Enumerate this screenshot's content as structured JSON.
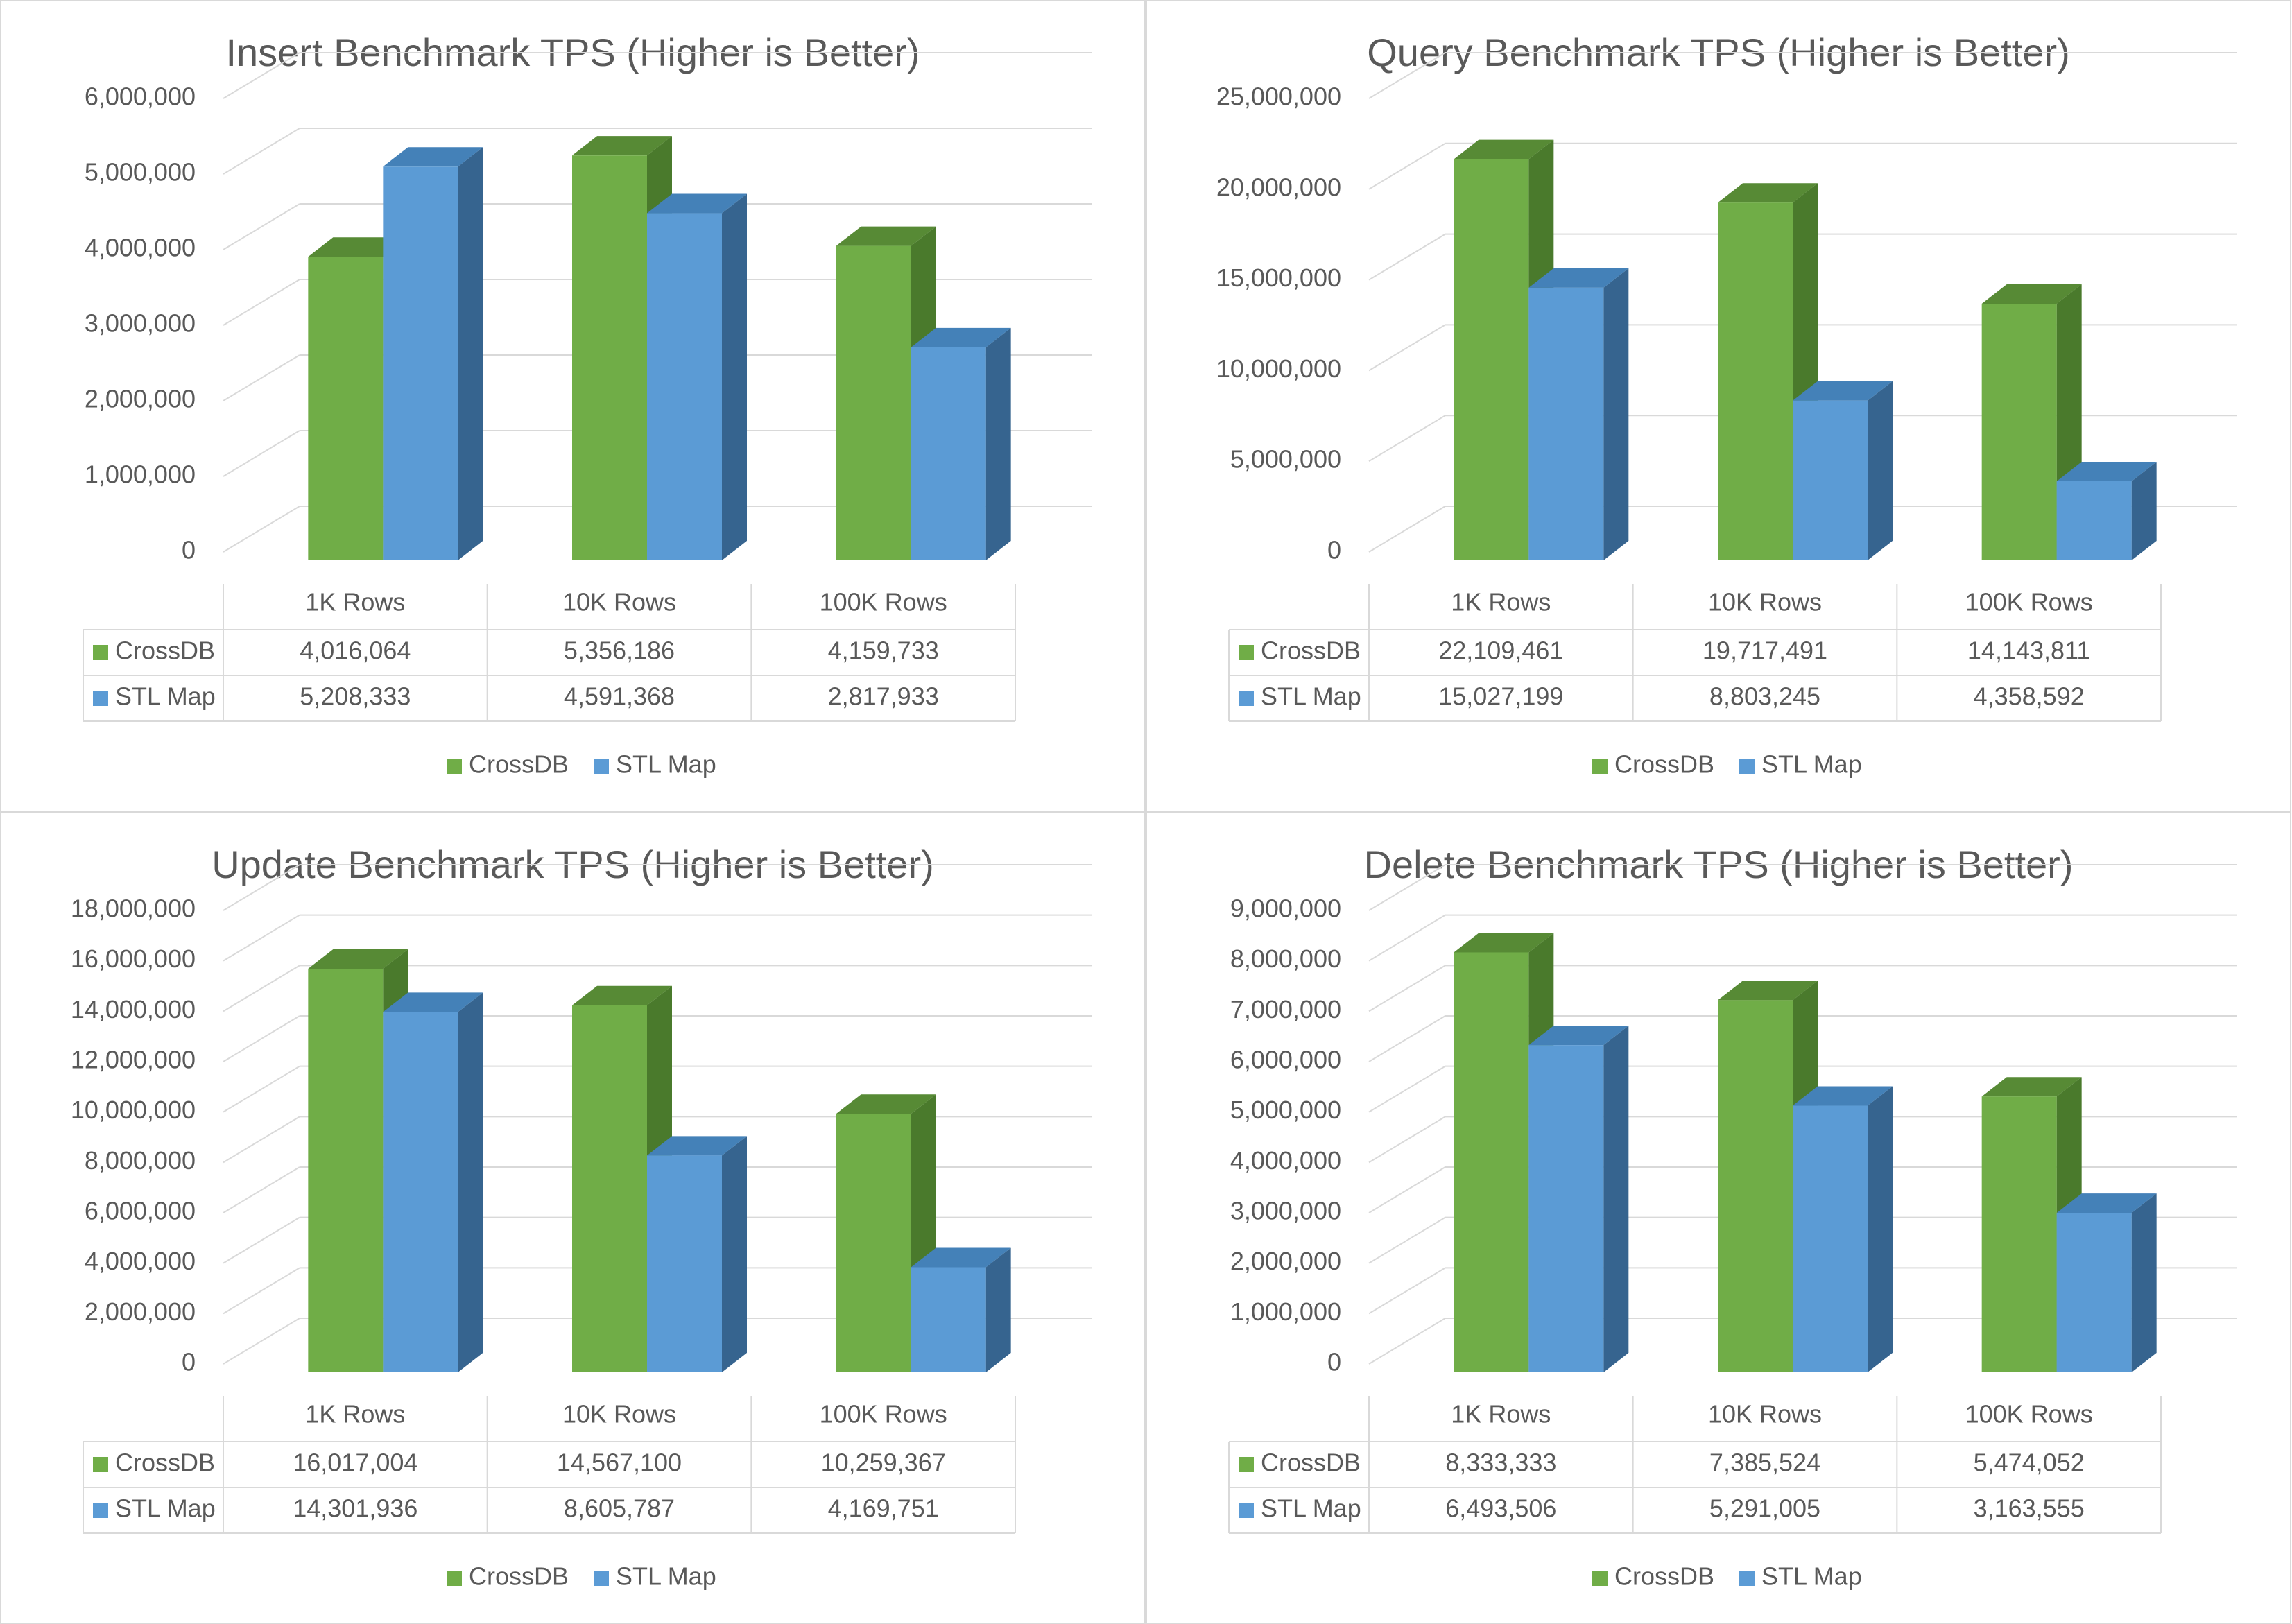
{
  "categories": [
    "1K Rows",
    "10K Rows",
    "100K Rows"
  ],
  "series_names": [
    "CrossDB",
    "STL Map"
  ],
  "colors": {
    "crossdb": "#70ad47",
    "crossdb_side": "#4a7a2c",
    "crossdb_top": "#578a35",
    "stl": "#5b9bd5",
    "stl_side": "#36648f",
    "stl_top": "#4481b8",
    "grid": "#d9d9d9",
    "text": "#595959",
    "title": "#595959"
  },
  "chart_data": [
    {
      "type": "bar",
      "title": "Insert Benchmark TPS (Higher is Better)",
      "categories": [
        "1K Rows",
        "10K Rows",
        "100K Rows"
      ],
      "series": [
        {
          "name": "CrossDB",
          "values": [
            4016064,
            5356186,
            4159733
          ],
          "labels": [
            "4,016,064",
            "5,356,186",
            "4,159,733"
          ]
        },
        {
          "name": "STL Map",
          "values": [
            5208333,
            4591368,
            2817933
          ],
          "labels": [
            "5,208,333",
            "4,591,368",
            "2,817,933"
          ]
        }
      ],
      "ylim": [
        0,
        6000000
      ],
      "yticks": [
        "0",
        "1,000,000",
        "2,000,000",
        "3,000,000",
        "4,000,000",
        "5,000,000",
        "6,000,000"
      ],
      "legend": "bottom",
      "grid": true
    },
    {
      "type": "bar",
      "title": "Query Benchmark TPS (Higher is Better)",
      "categories": [
        "1K Rows",
        "10K Rows",
        "100K Rows"
      ],
      "series": [
        {
          "name": "CrossDB",
          "values": [
            22109461,
            19717491,
            14143811
          ],
          "labels": [
            "22,109,461",
            "19,717,491",
            "14,143,811"
          ]
        },
        {
          "name": "STL Map",
          "values": [
            15027199,
            8803245,
            4358592
          ],
          "labels": [
            "15,027,199",
            "8,803,245",
            "4,358,592"
          ]
        }
      ],
      "ylim": [
        0,
        25000000
      ],
      "yticks": [
        "0",
        "5,000,000",
        "10,000,000",
        "15,000,000",
        "20,000,000",
        "25,000,000"
      ],
      "legend": "bottom",
      "grid": true
    },
    {
      "type": "bar",
      "title": "Update Benchmark TPS (Higher is Better)",
      "categories": [
        "1K Rows",
        "10K Rows",
        "100K Rows"
      ],
      "series": [
        {
          "name": "CrossDB",
          "values": [
            16017004,
            14567100,
            10259367
          ],
          "labels": [
            "16,017,004",
            "14,567,100",
            "10,259,367"
          ]
        },
        {
          "name": "STL Map",
          "values": [
            14301936,
            8605787,
            4169751
          ],
          "labels": [
            "14,301,936",
            "8,605,787",
            "4,169,751"
          ]
        }
      ],
      "ylim": [
        0,
        18000000
      ],
      "yticks": [
        "0",
        "2,000,000",
        "4,000,000",
        "6,000,000",
        "8,000,000",
        "10,000,000",
        "12,000,000",
        "14,000,000",
        "16,000,000",
        "18,000,000"
      ],
      "legend": "bottom",
      "grid": true
    },
    {
      "type": "bar",
      "title": "Delete Benchmark TPS (Higher is Better)",
      "categories": [
        "1K Rows",
        "10K Rows",
        "100K Rows"
      ],
      "series": [
        {
          "name": "CrossDB",
          "values": [
            8333333,
            7385524,
            5474052
          ],
          "labels": [
            "8,333,333",
            "7,385,524",
            "5,474,052"
          ]
        },
        {
          "name": "STL Map",
          "values": [
            6493506,
            5291005,
            3163555
          ],
          "labels": [
            "6,493,506",
            "5,291,005",
            "3,163,555"
          ]
        }
      ],
      "ylim": [
        0,
        9000000
      ],
      "yticks": [
        "0",
        "1,000,000",
        "2,000,000",
        "3,000,000",
        "4,000,000",
        "5,000,000",
        "6,000,000",
        "7,000,000",
        "8,000,000",
        "9,000,000"
      ],
      "legend": "bottom",
      "grid": true
    }
  ]
}
